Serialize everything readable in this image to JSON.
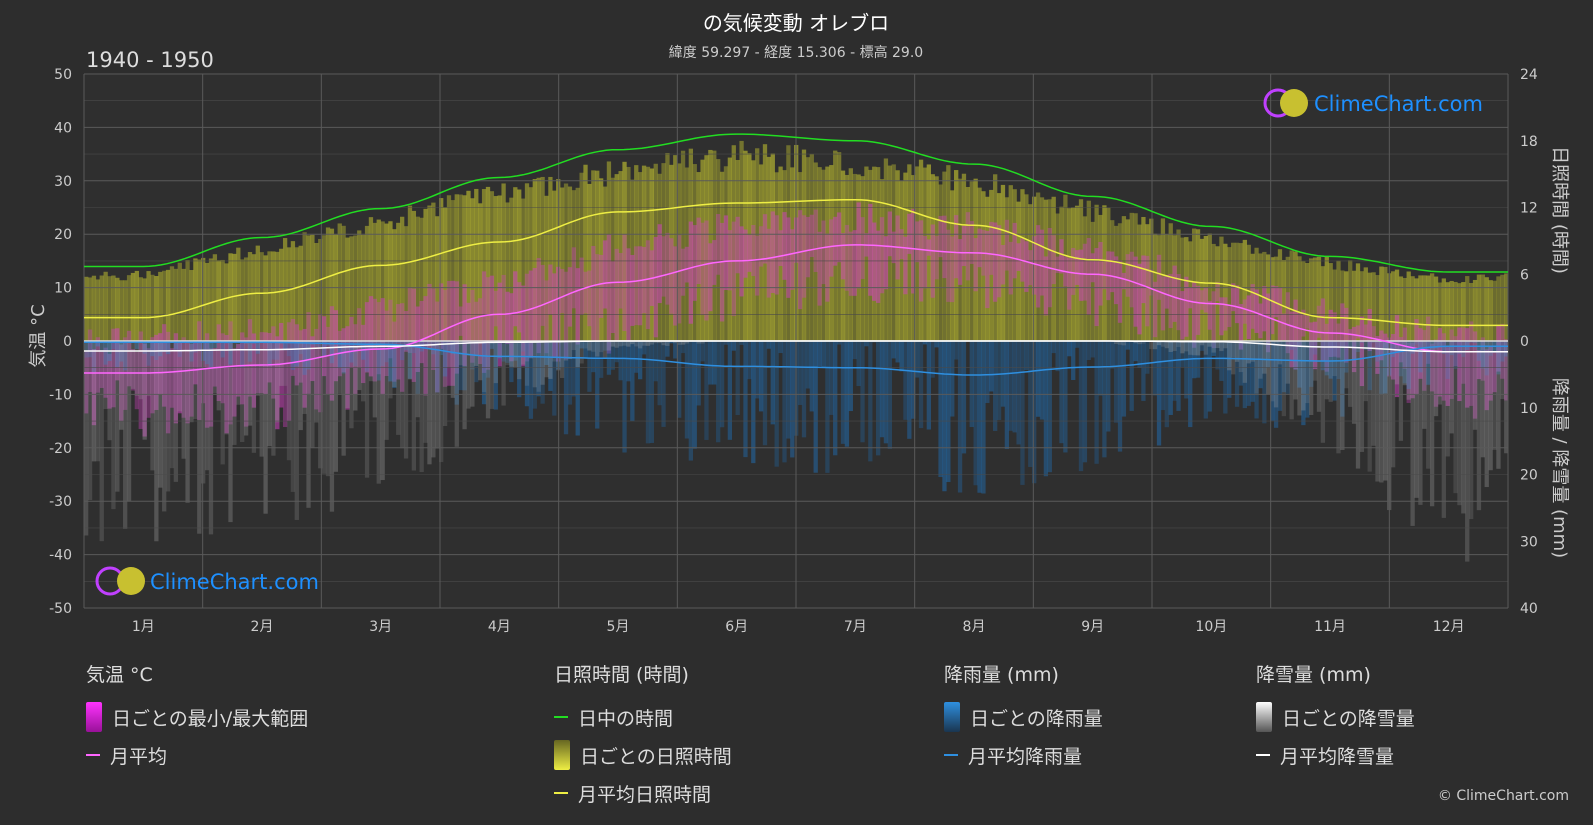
{
  "title": "の気候変動 オレブロ",
  "subtitle": "緯度 59.297 - 経度 15.306 - 標高 29.0",
  "period": "1940 - 1950",
  "logo_text": "ClimeChart.com",
  "copyright": "© ClimeChart.com",
  "colors": {
    "background": "#2d2d2d",
    "daylight": "#22dd22",
    "sunshine_line": "#eeee44",
    "sunshine_fill": "#b5b530",
    "temp_range": "#d040c0",
    "temp_mean": "#ff66ff",
    "rain": "#1e78c8",
    "rain_mean": "#2e8fe0",
    "snow": "#aaaaaa",
    "snow_mean": "#ffffff"
  },
  "legend": {
    "temperature": {
      "title": "気温 °C",
      "range": "日ごとの最小/最大範囲",
      "mean": "月平均"
    },
    "sunshine": {
      "title": "日照時間 (時間)",
      "daylight": "日中の時間",
      "daily": "日ごとの日照時間",
      "mean": "月平均日照時間"
    },
    "rain": {
      "title": "降雨量 (mm)",
      "daily": "日ごとの降雨量",
      "mean": "月平均降雨量"
    },
    "snow": {
      "title": "降雪量 (mm)",
      "daily": "日ごとの降雪量",
      "mean": "月平均降雪量"
    }
  },
  "chart_data": {
    "type": "line",
    "categories": [
      "1月",
      "2月",
      "3月",
      "4月",
      "5月",
      "6月",
      "7月",
      "8月",
      "9月",
      "10月",
      "11月",
      "12月"
    ],
    "y_left": {
      "label": "気温 °C",
      "range": [
        -50,
        50
      ],
      "ticks": [
        50,
        40,
        30,
        20,
        10,
        0,
        -10,
        -20,
        -30,
        -40,
        -50
      ]
    },
    "y_right_top": {
      "label": "日照時間 (時間)",
      "range": [
        0,
        24
      ],
      "ticks": [
        24,
        18,
        12,
        6,
        0
      ]
    },
    "y_right_bottom": {
      "label": "降雨量 / 降雪量 (mm)",
      "range": [
        0,
        40
      ],
      "ticks": [
        0,
        10,
        20,
        30,
        40
      ]
    },
    "grid": true,
    "series": [
      {
        "name": "日中の時間",
        "axis": "sunshine",
        "values": [
          6.7,
          9.3,
          11.9,
          14.7,
          17.2,
          18.6,
          18.0,
          15.9,
          13.0,
          10.3,
          7.6,
          6.2
        ]
      },
      {
        "name": "月平均日照時間",
        "axis": "sunshine",
        "values": [
          2.1,
          4.3,
          6.8,
          8.9,
          11.6,
          12.4,
          12.7,
          10.4,
          7.3,
          5.2,
          2.1,
          1.4
        ]
      },
      {
        "name": "月平均",
        "axis": "temperature",
        "values": [
          -6,
          -4.5,
          -1.5,
          5,
          11,
          15,
          18,
          16.5,
          12.5,
          7,
          1.5,
          -2
        ]
      },
      {
        "name": "月平均降雨量",
        "axis": "precipitation",
        "values": [
          0.2,
          0.2,
          0.5,
          2.3,
          2.6,
          3.8,
          4.0,
          5.1,
          3.9,
          2.6,
          3.0,
          0.8
        ]
      },
      {
        "name": "月平均降雪量",
        "axis": "precipitation",
        "values": [
          1.5,
          1.3,
          0.8,
          0.2,
          0,
          0,
          0,
          0,
          0,
          0.1,
          0.9,
          1.6
        ]
      }
    ],
    "daily_ranges": {
      "temp_max_monthly": [
        0,
        2,
        6,
        11,
        18,
        22,
        23,
        21,
        17,
        10,
        5,
        1
      ],
      "temp_min_monthly": [
        -13,
        -12,
        -8,
        -1,
        3,
        9,
        12,
        11,
        7,
        3,
        -3,
        -9
      ],
      "sunshine_max_hours": [
        6.5,
        9.0,
        11.5,
        14.5,
        16.5,
        18.0,
        17.5,
        15.5,
        12.5,
        10.0,
        7.5,
        6.0
      ],
      "rain_typical_max_mm": [
        3,
        3,
        5,
        8,
        12,
        14,
        15,
        17,
        14,
        10,
        9,
        4
      ],
      "snow_typical_max_mm": [
        22,
        22,
        18,
        8,
        1,
        0,
        0,
        0,
        0,
        2,
        14,
        24
      ]
    }
  }
}
